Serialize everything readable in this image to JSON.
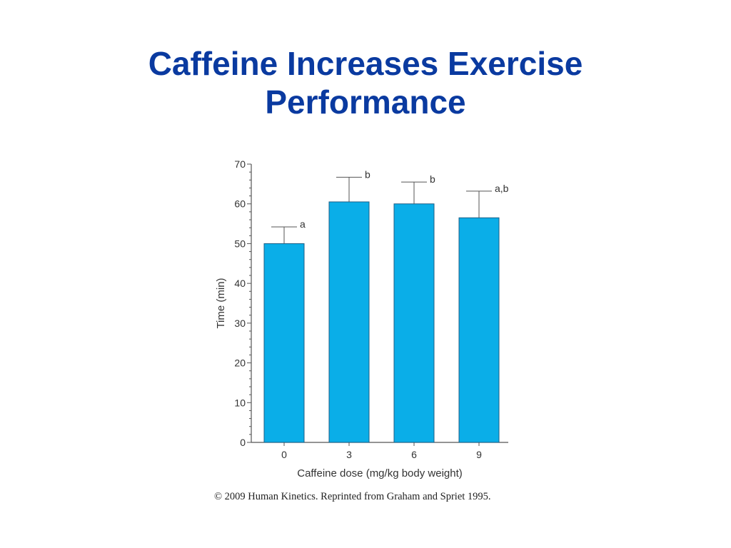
{
  "slide": {
    "title_line1": "Caffeine Increases Exercise",
    "title_line2": "Performance",
    "caption": "© 2009 Human Kinetics. Reprinted from Graham and Spriet 1995.",
    "title_color": "#0a3aa0"
  },
  "chart_data": {
    "type": "bar",
    "categories": [
      "0",
      "3",
      "6",
      "9"
    ],
    "values": [
      50,
      60.5,
      60,
      56.5
    ],
    "error_upper": [
      54.2,
      66.7,
      65.5,
      63.2
    ],
    "annotations": [
      "a",
      "b",
      "b",
      "a,b"
    ],
    "title": "",
    "xlabel": "Caffeine dose (mg/kg body weight)",
    "ylabel": "Time (min)",
    "ylim": [
      0,
      70
    ],
    "yticks": [
      0,
      10,
      20,
      30,
      40,
      50,
      60,
      70
    ],
    "grid": false,
    "legend": "none",
    "bar_color": "#0aaee8",
    "axis_color": "#555555"
  }
}
